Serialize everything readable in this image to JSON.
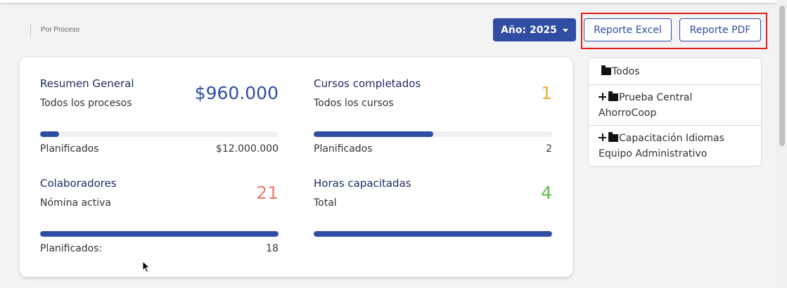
{
  "breadcrumb": {
    "text": "Por Proceso"
  },
  "toolbar": {
    "year_label": "Año: 2025",
    "excel_label": "Reporte Excel",
    "pdf_label": "Reporte PDF"
  },
  "stats": {
    "resumen": {
      "title": "Resumen General",
      "subtitle": "Todos los procesos",
      "value": "$960.000",
      "progress": 0.08,
      "footer_label": "Planificados",
      "footer_value": "$12.000.000"
    },
    "cursos": {
      "title": "Cursos completados",
      "subtitle": "Todos los cursos",
      "value": "1",
      "progress": 0.5,
      "footer_label": "Planificados",
      "footer_value": "2"
    },
    "colaboradores": {
      "title": "Colaboradores",
      "subtitle": "Nómina activa",
      "value": "21",
      "progress": 1.0,
      "footer_label": "Planificados:",
      "footer_value": "18"
    },
    "horas": {
      "title": "Horas capacitadas",
      "subtitle": "Total",
      "value": "4",
      "progress": 1.0
    }
  },
  "tree": {
    "items": [
      {
        "label": "Todos",
        "icon": "folder-icon"
      },
      {
        "label": "Prueba Central AhorroCoop",
        "line1": "Prueba Central",
        "line2": "AhorroCoop",
        "icon": "folder-icon",
        "expand_icon": "plus-icon"
      },
      {
        "label": "Capacitación Idiomas Equipo Administrativo",
        "line1": "Capacitación Idiomas",
        "line2": "Equipo Administrativo",
        "icon": "folder-icon",
        "expand_icon": "plus-icon"
      }
    ]
  },
  "colors": {
    "primary": "#2f4ea3",
    "value_money": "#2f4ea3",
    "value_courses": "#f0ad3c",
    "value_collaborators": "#f07c6e",
    "value_hours": "#5cbf4e",
    "highlight": "#e21d1d"
  }
}
